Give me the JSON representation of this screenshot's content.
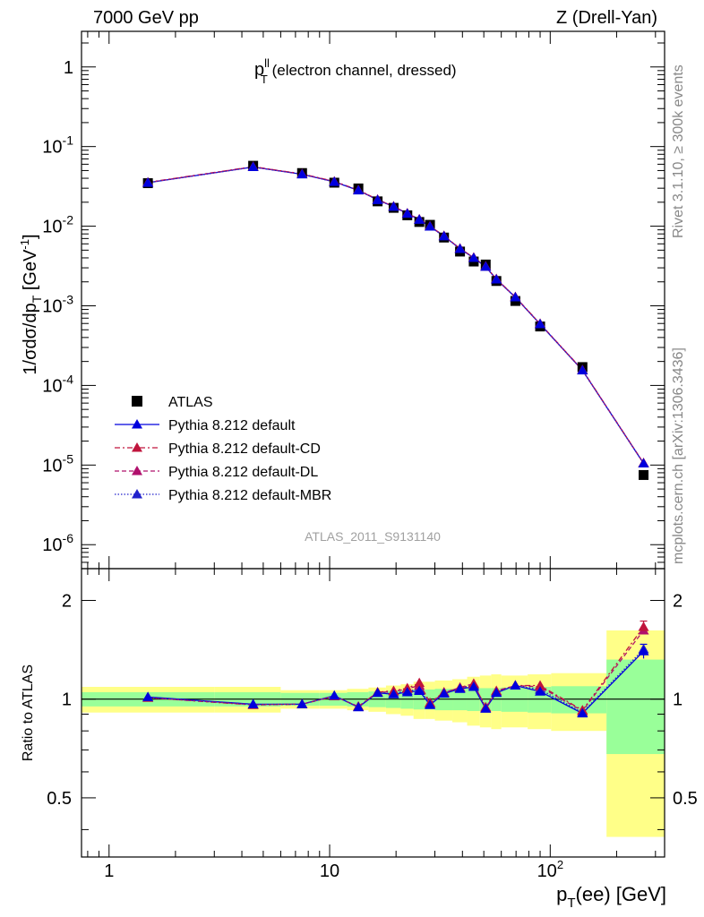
{
  "header": {
    "left": "7000 GeV pp",
    "right": "Z (Drell-Yan)"
  },
  "side_labels": {
    "rivet": "Rivet 3.1.10, ≥ 300k events",
    "mcplots": "mcplots.cern.ch [arXiv:1306.3436]"
  },
  "analysis_id": "ATLAS_2011_S9131140",
  "colors": {
    "atlas": "#000000",
    "default": "#0000dd",
    "cd": "#c0143c",
    "dl": "#b0106c",
    "mbr": "#2222cc",
    "band_inner": "#99ff99",
    "band_outer": "#ffff88"
  },
  "chart_data": [
    {
      "type": "scatter",
      "title_main": "p",
      "title_sup": "ll",
      "title_sub": "T",
      "title_rest": " (electron channel, dressed)",
      "ylabel": "1/σdσ/dp_T [GeV⁻¹]",
      "ylabel_parts": {
        "a": "1/σdσ/dp",
        "sub": "T",
        "b": " [GeV",
        "sup": "-1",
        "c": "]"
      },
      "xscale": "log",
      "yscale": "log",
      "xlim": [
        0.75,
        330
      ],
      "ylim": [
        5e-07,
        2.8
      ],
      "yticks": [
        {
          "v": 1,
          "base": "1",
          "exp": ""
        },
        {
          "v": 0.1,
          "base": "10",
          "exp": "-1"
        },
        {
          "v": 0.01,
          "base": "10",
          "exp": "-2"
        },
        {
          "v": 0.001,
          "base": "10",
          "exp": "-3"
        },
        {
          "v": 0.0001,
          "base": "10",
          "exp": "-4"
        },
        {
          "v": 1e-05,
          "base": "10",
          "exp": "-5"
        },
        {
          "v": 1e-06,
          "base": "10",
          "exp": "-6"
        }
      ],
      "legend": [
        {
          "key": "atlas",
          "label": "ATLAS",
          "marker": "square",
          "line": "none"
        },
        {
          "key": "default",
          "label": "Pythia 8.212 default",
          "marker": "triangle",
          "line": "solid"
        },
        {
          "key": "cd",
          "label": "Pythia 8.212 default-CD",
          "marker": "triangle",
          "line": "dashdot"
        },
        {
          "key": "dl",
          "label": "Pythia 8.212 default-DL",
          "marker": "triangle",
          "line": "dashed"
        },
        {
          "key": "mbr",
          "label": "Pythia 8.212 default-MBR",
          "marker": "triangle",
          "line": "dotted"
        }
      ],
      "x": [
        1.5,
        4.5,
        7.5,
        10.5,
        13.5,
        16.5,
        19.5,
        22.5,
        25.5,
        28.5,
        33,
        39,
        45,
        51,
        57,
        69.5,
        90,
        140,
        265
      ],
      "atlas": [
        0.0347,
        0.0574,
        0.0465,
        0.0352,
        0.0298,
        0.0205,
        0.017,
        0.0137,
        0.0113,
        0.0104,
        0.0072,
        0.0048,
        0.0036,
        0.0033,
        0.00205,
        0.00115,
        0.00055,
        0.00017,
        7.5e-06
      ],
      "pythia": [
        0.0352,
        0.0554,
        0.0449,
        0.0361,
        0.0282,
        0.0214,
        0.0176,
        0.0144,
        0.0121,
        0.0099,
        0.0075,
        0.0052,
        0.004,
        0.0031,
        0.00215,
        0.00128,
        0.00059,
        0.000155,
        1.05e-05
      ]
    },
    {
      "type": "line",
      "ylabel": "Ratio to ATLAS",
      "xlabel_parts": {
        "a": "p",
        "sub": "T",
        "b": "(ee) [GeV]"
      },
      "xscale": "log",
      "yscale": "log",
      "xlim": [
        0.75,
        330
      ],
      "ylim": [
        0.33,
        2.5
      ],
      "yticks": [
        {
          "v": 0.5,
          "label": "0.5"
        },
        {
          "v": 1,
          "label": "1"
        },
        {
          "v": 2,
          "label": "2"
        }
      ],
      "xticks": [
        {
          "v": 1,
          "base": "1",
          "exp": ""
        },
        {
          "v": 10,
          "base": "10",
          "exp": ""
        },
        {
          "v": 100,
          "base": "10",
          "exp": "2"
        }
      ],
      "band_edges": [
        0.75,
        3,
        6,
        9,
        12,
        15,
        18,
        21,
        24,
        27,
        30,
        36,
        42,
        48,
        54,
        60,
        79,
        101,
        180,
        330
      ],
      "band_inner": [
        0.05,
        0.05,
        0.045,
        0.045,
        0.05,
        0.055,
        0.06,
        0.065,
        0.07,
        0.07,
        0.075,
        0.075,
        0.08,
        0.08,
        0.08,
        0.085,
        0.09,
        0.095,
        0.32
      ],
      "band_outer": [
        0.09,
        0.09,
        0.065,
        0.065,
        0.075,
        0.085,
        0.1,
        0.11,
        0.13,
        0.13,
        0.14,
        0.15,
        0.17,
        0.18,
        0.19,
        0.18,
        0.19,
        0.2,
        0.62
      ],
      "x": [
        1.5,
        4.5,
        7.5,
        10.5,
        13.5,
        16.5,
        19.5,
        22.5,
        25.5,
        28.5,
        33,
        39,
        45,
        51,
        57,
        69.5,
        90,
        140,
        265
      ],
      "ratio_default": [
        1.015,
        0.965,
        0.965,
        1.025,
        0.945,
        1.045,
        1.035,
        1.05,
        1.06,
        0.96,
        1.04,
        1.075,
        1.09,
        0.935,
        1.045,
        1.1,
        1.055,
        0.905,
        1.4
      ],
      "ratio_cd": [
        1.01,
        0.96,
        0.965,
        1.02,
        0.95,
        1.05,
        1.06,
        1.08,
        1.12,
        0.975,
        1.05,
        1.08,
        1.11,
        0.945,
        1.06,
        1.1,
        1.1,
        0.925,
        1.66
      ],
      "ratio_dl": [
        1.01,
        0.962,
        0.966,
        1.022,
        0.948,
        1.048,
        1.055,
        1.075,
        1.1,
        0.97,
        1.045,
        1.085,
        1.115,
        0.94,
        1.055,
        1.1,
        1.09,
        0.92,
        1.62
      ],
      "ratio_mbr": [
        1.013,
        0.963,
        0.965,
        1.023,
        0.946,
        1.046,
        1.04,
        1.06,
        1.07,
        0.965,
        1.042,
        1.08,
        1.1,
        0.937,
        1.05,
        1.1,
        1.07,
        0.91,
        1.42
      ],
      "ratio_err_last": 0.07
    }
  ]
}
